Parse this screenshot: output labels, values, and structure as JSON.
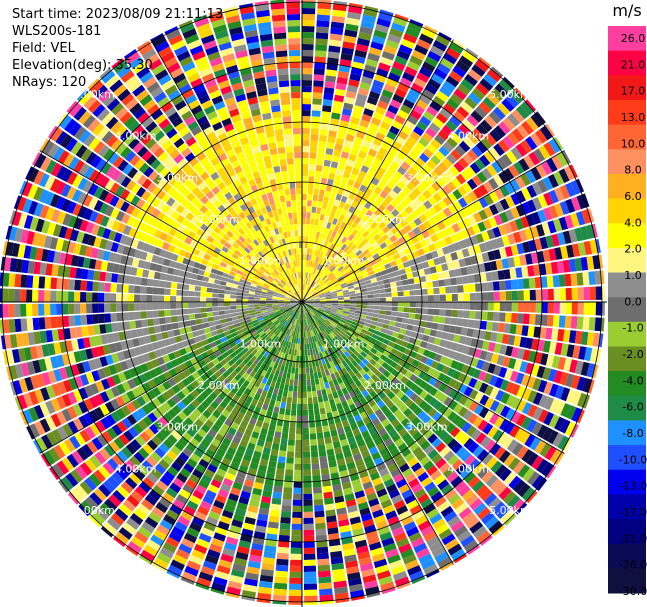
{
  "header": {
    "start_time": "Start time: 2023/08/09 21:11:13",
    "instrument": "WLS200s-181",
    "field": "Field: VEL",
    "elevation": "Elevation(deg): 35.30",
    "nrays": "NRays: 120"
  },
  "colorbar": {
    "unit": "m/s",
    "ticks": [
      "26.0",
      "21.0",
      "17.0",
      "13.0",
      "10.0",
      "8.0",
      "6.0",
      "4.0",
      "2.0",
      "1.0",
      "0.0",
      "-1.0",
      "-2.0",
      "-4.0",
      "-6.0",
      "-8.0",
      "-10.0",
      "-13.0",
      "-17.0",
      "-21.0",
      "-26.0",
      "-30.0"
    ],
    "colors": [
      "#ff3fa0",
      "#ff0044",
      "#f21818",
      "#ff3c1a",
      "#ff6633",
      "#ff9060",
      "#ffb020",
      "#ffd400",
      "#ffff00",
      "#fff680",
      "#8e8e8e",
      "#6e6e6e",
      "#9acd32",
      "#6b8e23",
      "#228b22",
      "#1e8c46",
      "#1e90ff",
      "#1f50ff",
      "#0000ee",
      "#0000aa",
      "#000080",
      "#0a0a55",
      "#101040"
    ]
  },
  "chart_data": {
    "type": "ppi",
    "title": "",
    "field": "VEL",
    "units": "m/s",
    "range_rings_km": [
      1.0,
      2.0,
      3.0,
      4.0,
      5.0
    ],
    "ring_labels": [
      "1.00km",
      "2.00km",
      "3.00km",
      "4.00km",
      "5.00km"
    ],
    "nrays": 120,
    "elevation_deg": 35.3,
    "vmin": -30.0,
    "vmax": 26.0,
    "pattern": {
      "north_sector_near": "positive 1-6 m/s (yellow/orange)",
      "south_sector_near": "negative -2 to -6 m/s (green)",
      "east_west_near": "near 0 m/s (grey)",
      "far_range": "noisy, all values"
    }
  }
}
